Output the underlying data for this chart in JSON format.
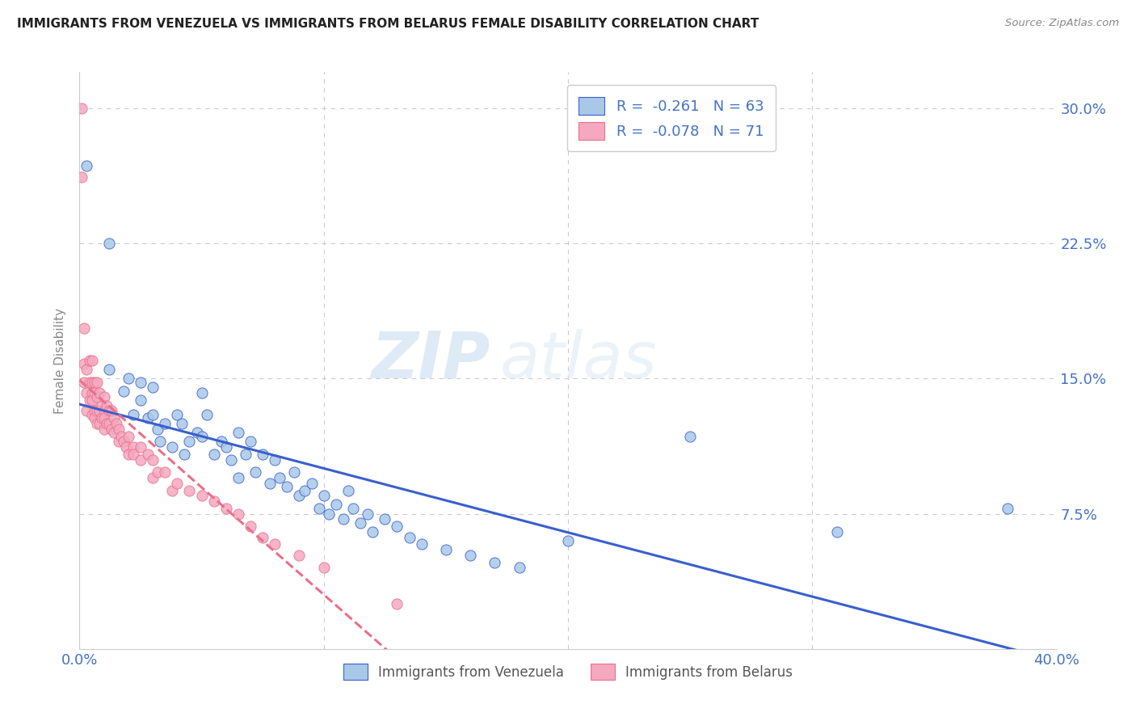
{
  "title": "IMMIGRANTS FROM VENEZUELA VS IMMIGRANTS FROM BELARUS FEMALE DISABILITY CORRELATION CHART",
  "source": "Source: ZipAtlas.com",
  "ylabel": "Female Disability",
  "xlim": [
    0.0,
    0.4
  ],
  "ylim": [
    0.0,
    0.32
  ],
  "legend_R1": "-0.261",
  "legend_N1": "63",
  "legend_R2": "-0.078",
  "legend_N2": "71",
  "color_venezuela": "#a8c8e8",
  "color_belarus": "#f5a8c0",
  "line_color_venezuela": "#3a5fcd",
  "line_color_belarus": "#e8708a",
  "watermark_zip": "ZIP",
  "watermark_atlas": "atlas",
  "background_color": "#ffffff",
  "venezuela_x": [
    0.003,
    0.012,
    0.012,
    0.018,
    0.02,
    0.022,
    0.025,
    0.025,
    0.028,
    0.03,
    0.03,
    0.032,
    0.033,
    0.035,
    0.038,
    0.04,
    0.042,
    0.043,
    0.045,
    0.048,
    0.05,
    0.05,
    0.052,
    0.055,
    0.058,
    0.06,
    0.062,
    0.065,
    0.065,
    0.068,
    0.07,
    0.072,
    0.075,
    0.078,
    0.08,
    0.082,
    0.085,
    0.088,
    0.09,
    0.092,
    0.095,
    0.098,
    0.1,
    0.102,
    0.105,
    0.108,
    0.11,
    0.112,
    0.115,
    0.118,
    0.12,
    0.125,
    0.13,
    0.135,
    0.14,
    0.15,
    0.16,
    0.17,
    0.18,
    0.2,
    0.25,
    0.31,
    0.38
  ],
  "venezuela_y": [
    0.268,
    0.225,
    0.155,
    0.143,
    0.15,
    0.13,
    0.148,
    0.138,
    0.128,
    0.145,
    0.13,
    0.122,
    0.115,
    0.125,
    0.112,
    0.13,
    0.125,
    0.108,
    0.115,
    0.12,
    0.142,
    0.118,
    0.13,
    0.108,
    0.115,
    0.112,
    0.105,
    0.12,
    0.095,
    0.108,
    0.115,
    0.098,
    0.108,
    0.092,
    0.105,
    0.095,
    0.09,
    0.098,
    0.085,
    0.088,
    0.092,
    0.078,
    0.085,
    0.075,
    0.08,
    0.072,
    0.088,
    0.078,
    0.07,
    0.075,
    0.065,
    0.072,
    0.068,
    0.062,
    0.058,
    0.055,
    0.052,
    0.048,
    0.045,
    0.06,
    0.118,
    0.065,
    0.078
  ],
  "belarus_x": [
    0.001,
    0.001,
    0.002,
    0.002,
    0.002,
    0.003,
    0.003,
    0.003,
    0.004,
    0.004,
    0.004,
    0.005,
    0.005,
    0.005,
    0.005,
    0.005,
    0.006,
    0.006,
    0.006,
    0.006,
    0.007,
    0.007,
    0.007,
    0.007,
    0.008,
    0.008,
    0.008,
    0.009,
    0.009,
    0.01,
    0.01,
    0.01,
    0.01,
    0.011,
    0.011,
    0.012,
    0.012,
    0.013,
    0.013,
    0.014,
    0.014,
    0.015,
    0.016,
    0.016,
    0.017,
    0.018,
    0.019,
    0.02,
    0.02,
    0.022,
    0.022,
    0.025,
    0.025,
    0.028,
    0.03,
    0.03,
    0.032,
    0.035,
    0.038,
    0.04,
    0.045,
    0.05,
    0.055,
    0.06,
    0.065,
    0.07,
    0.075,
    0.08,
    0.09,
    0.1,
    0.13
  ],
  "belarus_y": [
    0.3,
    0.262,
    0.178,
    0.158,
    0.148,
    0.155,
    0.142,
    0.132,
    0.16,
    0.148,
    0.138,
    0.16,
    0.148,
    0.142,
    0.138,
    0.13,
    0.148,
    0.142,
    0.132,
    0.128,
    0.148,
    0.14,
    0.132,
    0.125,
    0.142,
    0.132,
    0.125,
    0.135,
    0.128,
    0.14,
    0.132,
    0.128,
    0.122,
    0.135,
    0.125,
    0.132,
    0.125,
    0.132,
    0.122,
    0.128,
    0.12,
    0.125,
    0.122,
    0.115,
    0.118,
    0.115,
    0.112,
    0.118,
    0.108,
    0.112,
    0.108,
    0.112,
    0.105,
    0.108,
    0.105,
    0.095,
    0.098,
    0.098,
    0.088,
    0.092,
    0.088,
    0.085,
    0.082,
    0.078,
    0.075,
    0.068,
    0.062,
    0.058,
    0.052,
    0.045,
    0.025
  ]
}
